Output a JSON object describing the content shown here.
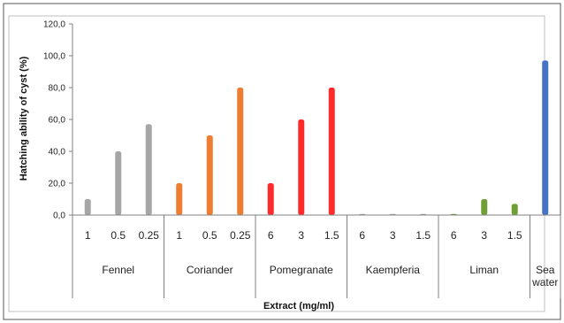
{
  "chart_data": {
    "type": "bar",
    "xlabel": "Extract (mg/ml)",
    "ylabel": "Hatching ability of cyst (%)",
    "ylim": [
      0,
      120
    ],
    "yticks": [
      "0,0",
      "20,0",
      "40,0",
      "60,0",
      "80,0",
      "100,0",
      "120,0"
    ],
    "grid": false,
    "groups": [
      {
        "name": "Fennel",
        "color": "#a6a6a6",
        "bars": [
          {
            "label": "1",
            "value": 10
          },
          {
            "label": "0.5",
            "value": 40
          },
          {
            "label": "0.25",
            "value": 57
          }
        ]
      },
      {
        "name": "Coriander",
        "color": "#ed7d31",
        "bars": [
          {
            "label": "1",
            "value": 20
          },
          {
            "label": "0.5",
            "value": 50
          },
          {
            "label": "0.25",
            "value": 80
          }
        ]
      },
      {
        "name": "Pomegranate",
        "color": "#ff2a2a",
        "bars": [
          {
            "label": "6",
            "value": 20
          },
          {
            "label": "3",
            "value": 60
          },
          {
            "label": "1.5",
            "value": 80
          }
        ]
      },
      {
        "name": "Kaempferia",
        "color": "#a6a6a6",
        "bars": [
          {
            "label": "6",
            "value": 0
          },
          {
            "label": "3",
            "value": 0
          },
          {
            "label": "1.5",
            "value": 0
          }
        ]
      },
      {
        "name": "Liman",
        "color": "#70a035",
        "bars": [
          {
            "label": "6",
            "value": 0
          },
          {
            "label": "3",
            "value": 10
          },
          {
            "label": "1.5",
            "value": 7
          }
        ]
      },
      {
        "name": "Sea water",
        "name_lines": [
          "Sea",
          "water"
        ],
        "color": "#4472c4",
        "bars": [
          {
            "label": "",
            "value": 97
          }
        ]
      }
    ]
  }
}
